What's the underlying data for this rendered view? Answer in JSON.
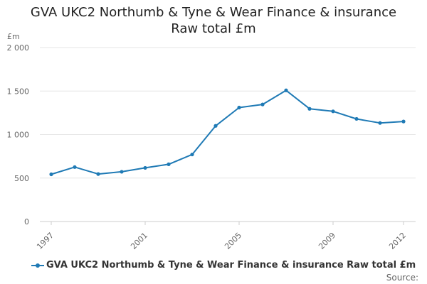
{
  "chart_data": {
    "type": "line",
    "title_line1": "GVA UKC2 Northumb & Tyne & Wear Finance & insurance",
    "title_line2": "Raw total £m",
    "unit_label": "£m",
    "x": [
      1997,
      1998,
      1999,
      2000,
      2001,
      2002,
      2003,
      2004,
      2005,
      2006,
      2007,
      2008,
      2009,
      2010,
      2011,
      2012
    ],
    "x_tick_labels": [
      "1997",
      "2001",
      "2005",
      "2009",
      "2012"
    ],
    "y_ticks": [
      0,
      500,
      1000,
      1500,
      2000
    ],
    "y_tick_labels": [
      "0",
      "500",
      "1 000",
      "1 500",
      "2 000"
    ],
    "ylim": [
      0,
      2000
    ],
    "grid": true,
    "legend_position": "bottom",
    "series": [
      {
        "name": "GVA UKC2 Northumb & Tyne & Wear Finance & insurance Raw total £m",
        "color": "#1f7ab5",
        "values": [
          543,
          626,
          546,
          572,
          617,
          658,
          771,
          1100,
          1310,
          1346,
          1508,
          1296,
          1267,
          1180,
          1133,
          1150
        ]
      }
    ]
  },
  "source_label": "Source:"
}
